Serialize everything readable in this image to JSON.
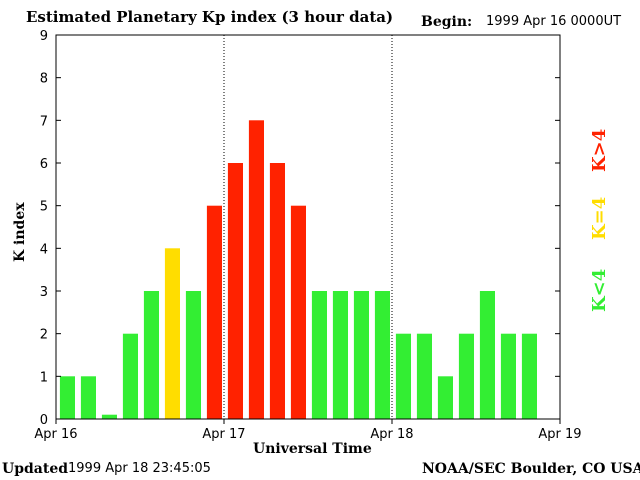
{
  "header": {
    "title": "Estimated Planetary Kp index (3 hour data)",
    "begin_label": "Begin:",
    "begin_value": "1999 Apr 16 0000UT"
  },
  "footer": {
    "updated_label": "Updated",
    "updated_value": "1999 Apr 18 23:45:05",
    "credit": "NOAA/SEC Boulder, CO USA"
  },
  "legend": {
    "low": "K<4",
    "mid": "K=4",
    "high": "K>4"
  },
  "colors": {
    "low": "#33ee33",
    "mid": "#ffdd00",
    "high": "#ff2200",
    "axis": "#000000"
  },
  "chart_data": {
    "type": "bar",
    "title": "Estimated Planetary Kp index (3 hour data)",
    "xlabel": "Universal Time",
    "ylabel": "K index",
    "ylim": [
      0,
      9
    ],
    "yticks": [
      "0",
      "1",
      "2",
      "3",
      "4",
      "5",
      "6",
      "7",
      "8",
      "9"
    ],
    "xticks": [
      "Apr 16",
      "Apr 17",
      "Apr 18",
      "Apr 19"
    ],
    "interval_hours": 3,
    "day_separators": [
      "Apr 17",
      "Apr 18"
    ],
    "values": [
      1,
      1,
      0.1,
      2,
      3,
      4,
      3,
      5,
      6,
      7,
      6,
      5,
      3,
      3,
      3,
      3,
      2,
      2,
      1,
      2,
      3,
      2,
      2
    ]
  }
}
